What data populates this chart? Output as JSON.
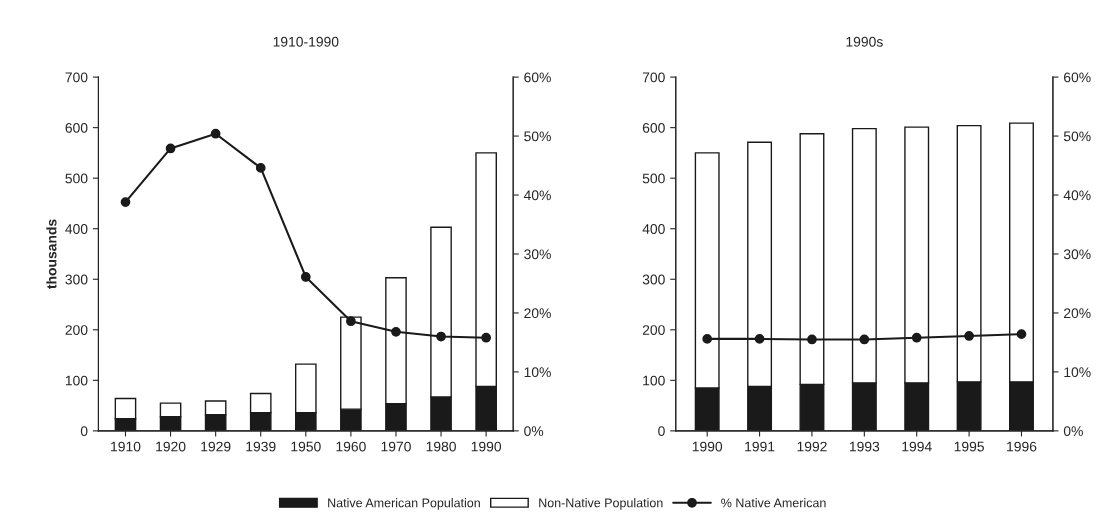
{
  "chart_data": [
    {
      "type": "bar",
      "title": "1910-1990",
      "ylabel": "thousands",
      "stacked": true,
      "legend": "bottom",
      "marker": "circle",
      "grid": false,
      "categories": [
        "1910",
        "1920",
        "1929",
        "1939",
        "1950",
        "1960",
        "1970",
        "1980",
        "1990"
      ],
      "series": [
        {
          "name": "Native American Population",
          "color": "#1a1a1a",
          "values": [
            24,
            28,
            32,
            36,
            36,
            43,
            54,
            67,
            88
          ]
        },
        {
          "name": "Non-Native Population",
          "color": "#ffffff",
          "values": [
            40,
            27,
            27,
            38,
            96,
            182,
            249,
            336,
            462
          ]
        },
        {
          "name": "% Native American",
          "type": "line",
          "axis": "y2",
          "color": "#1a1a1a",
          "values": [
            38.8,
            47.9,
            50.4,
            44.6,
            26.1,
            18.6,
            16.8,
            16.0,
            15.8
          ]
        }
      ],
      "ylim": [
        0,
        700
      ],
      "yticks": [
        0,
        100,
        200,
        300,
        400,
        500,
        600,
        700
      ],
      "y2lim": [
        0,
        60
      ],
      "y2ticks": [
        {
          "value": 0,
          "label": "0%"
        },
        {
          "value": 10,
          "label": "10%"
        },
        {
          "value": 20,
          "label": "20%"
        },
        {
          "value": 30,
          "label": "30%"
        },
        {
          "value": 40,
          "label": "40%"
        },
        {
          "value": 50,
          "label": "50%"
        },
        {
          "value": 60,
          "label": "60%"
        }
      ]
    },
    {
      "type": "bar",
      "title": "1990s",
      "stacked": true,
      "marker": "circle",
      "grid": false,
      "categories": [
        "1990",
        "1991",
        "1992",
        "1993",
        "1994",
        "1995",
        "1996"
      ],
      "series": [
        {
          "color": "#1a1a1a",
          "values": [
            85,
            88,
            92,
            95,
            95,
            97,
            97
          ]
        },
        {
          "color": "#ffffff",
          "values": [
            465,
            483,
            496,
            503,
            506,
            507,
            512
          ]
        },
        {
          "type": "line",
          "axis": "y2",
          "color": "#1a1a1a",
          "values": [
            15.6,
            15.6,
            15.5,
            15.5,
            15.8,
            16.1,
            16.4
          ]
        }
      ],
      "ylim": [
        0,
        700
      ],
      "yticks": [
        0,
        100,
        200,
        300,
        400,
        500,
        600,
        700
      ],
      "y2lim": [
        0,
        60
      ],
      "y2ticks": [
        {
          "value": 0,
          "label": "0%"
        },
        {
          "value": 10,
          "label": "10%"
        },
        {
          "value": 20,
          "label": "20%"
        },
        {
          "value": 30,
          "label": "30%"
        },
        {
          "value": 40,
          "label": "40%"
        },
        {
          "value": 50,
          "label": "50%"
        },
        {
          "value": 60,
          "label": "60%"
        }
      ]
    }
  ]
}
